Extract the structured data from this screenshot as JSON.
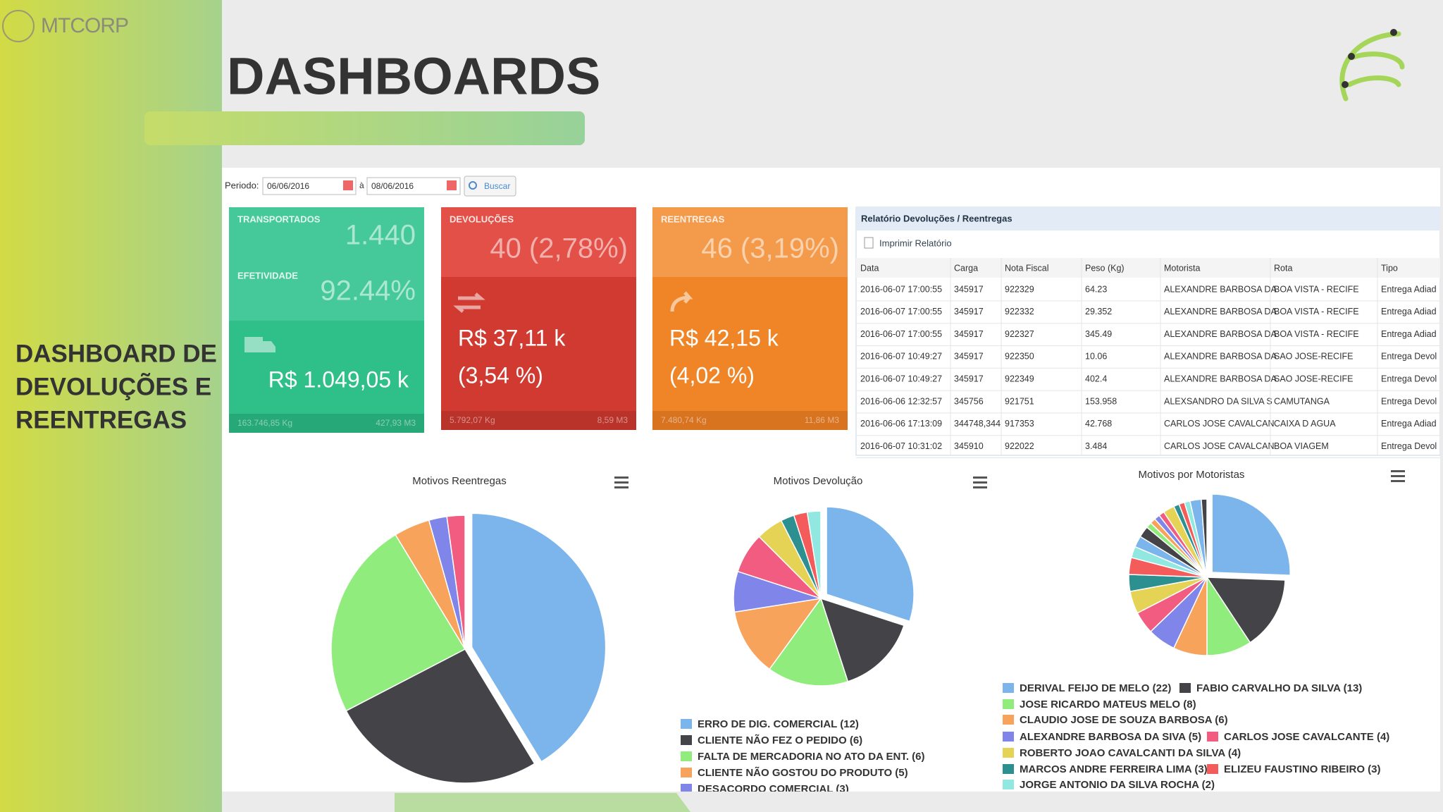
{
  "logo": "MTCORP",
  "title": "DASHBOARDS",
  "sidebar_text": [
    "DASHBOARD DE",
    "DEVOLUÇÕES E",
    "REENTREGAS"
  ],
  "filter": {
    "label": "Periodo:",
    "from": "06/06/2016",
    "separator": "à",
    "to": "08/06/2016",
    "button": "Buscar"
  },
  "cards": [
    {
      "label": "TRANSPORTADOS",
      "value": "1.440",
      "label2": "EFETIVIDADE",
      "value2": "92.44%",
      "amount": "R$ 1.049,05 k",
      "weight": "163.746,85 Kg",
      "volume": "427,93 M3"
    },
    {
      "label": "DEVOLUÇÕES",
      "value": "40 (2,78%)",
      "amount": "R$ 37,11 k",
      "percent": "(3,54 %)",
      "weight": "5.792,07 Kg",
      "volume": "8,59 M3"
    },
    {
      "label": "REENTREGAS",
      "value": "46 (3,19%)",
      "amount": "R$ 42,15 k",
      "percent": "(4,02 %)",
      "weight": "7.480,74 Kg",
      "volume": "11,86 M3"
    }
  ],
  "report": {
    "title": "Relatório Devoluções / Reentregas",
    "print": "Imprimir Relatório",
    "columns": [
      "Data",
      "Carga",
      "Nota Fiscal",
      "Peso (Kg)",
      "Motorista",
      "Rota",
      "Tipo"
    ],
    "rows": [
      [
        "2016-06-07 17:00:55",
        "345917",
        "922329",
        "64.23",
        "ALEXANDRE BARBOSA DA",
        "BOA VISTA - RECIFE",
        "Entrega Adiad"
      ],
      [
        "2016-06-07 17:00:55",
        "345917",
        "922332",
        "29.352",
        "ALEXANDRE BARBOSA DA",
        "BOA VISTA - RECIFE",
        "Entrega Adiad"
      ],
      [
        "2016-06-07 17:00:55",
        "345917",
        "922327",
        "345.49",
        "ALEXANDRE BARBOSA DA",
        "BOA VISTA - RECIFE",
        "Entrega Adiad"
      ],
      [
        "2016-06-07 10:49:27",
        "345917",
        "922350",
        "10.06",
        "ALEXANDRE BARBOSA DA",
        "SAO JOSE-RECIFE",
        "Entrega Devol"
      ],
      [
        "2016-06-07 10:49:27",
        "345917",
        "922349",
        "402.4",
        "ALEXANDRE BARBOSA DA",
        "SAO JOSE-RECIFE",
        "Entrega Devol"
      ],
      [
        "2016-06-06 12:32:57",
        "345756",
        "921751",
        "153.958",
        "ALEXSANDRO DA SILVA S",
        "CAMUTANGA",
        "Entrega Devol"
      ],
      [
        "2016-06-06 17:13:09",
        "344748,344",
        "917353",
        "42.768",
        "CARLOS JOSE CAVALCAN",
        "CAIXA D AGUA",
        "Entrega Adiad"
      ],
      [
        "2016-06-07 10:31:02",
        "345910",
        "922022",
        "3.484",
        "CARLOS JOSE CAVALCAN",
        "BOA VIAGEM",
        "Entrega Devol"
      ]
    ]
  },
  "charts": [
    {
      "type": "pie",
      "title": "Motivos Reentregas",
      "slices": [
        {
          "value": 19,
          "color": "#7cb5ec"
        },
        {
          "value": 12,
          "color": "#434348"
        },
        {
          "value": 11,
          "color": "#90ed7d"
        },
        {
          "value": 2,
          "color": "#f7a35c"
        },
        {
          "value": 1,
          "color": "#8085e9"
        },
        {
          "value": 1,
          "color": "#f15c80"
        }
      ]
    },
    {
      "type": "pie",
      "title": "Motivos Devolução",
      "slices": [
        {
          "name": "ERRO DE DIG. COMERCIAL (12)",
          "value": 12,
          "color": "#7cb5ec"
        },
        {
          "name": "CLIENTE NÃO FEZ O PEDIDO (6)",
          "value": 6,
          "color": "#434348"
        },
        {
          "name": "FALTA DE MERCADORIA NO ATO DA ENT. (6)",
          "value": 6,
          "color": "#90ed7d"
        },
        {
          "name": "CLIENTE NÃO GOSTOU DO PRODUTO (5)",
          "value": 5,
          "color": "#f7a35c"
        },
        {
          "name": "DESACORDO COMERCIAL (3)",
          "value": 3,
          "color": "#8085e9"
        },
        {
          "value": 3,
          "color": "#f15c80"
        },
        {
          "value": 2,
          "color": "#e4d354"
        },
        {
          "value": 1,
          "color": "#2b908f"
        },
        {
          "value": 1,
          "color": "#f45b5b"
        },
        {
          "value": 1,
          "color": "#91e8e1"
        }
      ]
    },
    {
      "type": "pie",
      "title": "Motivos por Motoristas",
      "slices": [
        {
          "name": "DERIVAL FEIJO DE MELO (22)",
          "value": 22,
          "color": "#7cb5ec"
        },
        {
          "name": "FABIO CARVALHO DA SILVA (13)",
          "value": 13,
          "color": "#434348"
        },
        {
          "name": "JOSE RICARDO MATEUS MELO (8)",
          "value": 8,
          "color": "#90ed7d"
        },
        {
          "name": "CLAUDIO JOSE DE SOUZA BARBOSA (6)",
          "value": 6,
          "color": "#f7a35c"
        },
        {
          "name": "ALEXANDRE BARBOSA DA SIVA (5)",
          "value": 5,
          "color": "#8085e9"
        },
        {
          "name": "CARLOS JOSE CAVALCANTE (4)",
          "value": 4,
          "color": "#f15c80"
        },
        {
          "name": "ROBERTO JOAO CAVALCANTI DA SILVA (4)",
          "value": 4,
          "color": "#e4d354"
        },
        {
          "name": "MARCOS ANDRE FERREIRA LIMA (3)",
          "value": 3,
          "color": "#2b908f"
        },
        {
          "name": "ELIZEU FAUSTINO RIBEIRO (3)",
          "value": 3,
          "color": "#f45b5b"
        },
        {
          "name": "JORGE ANTONIO DA SILVA ROCHA (2)",
          "value": 2,
          "color": "#91e8e1"
        },
        {
          "value": 2,
          "color": "#7cb5ec"
        },
        {
          "value": 2,
          "color": "#434348"
        },
        {
          "value": 1,
          "color": "#90ed7d"
        },
        {
          "value": 1,
          "color": "#f7a35c"
        },
        {
          "value": 1,
          "color": "#8085e9"
        },
        {
          "value": 1,
          "color": "#f15c80"
        },
        {
          "value": 2,
          "color": "#e4d354"
        },
        {
          "value": 1,
          "color": "#2b908f"
        },
        {
          "value": 1,
          "color": "#f45b5b"
        },
        {
          "value": 1,
          "color": "#91e8e1"
        },
        {
          "value": 2,
          "color": "#7cb5ec"
        },
        {
          "value": 1,
          "color": "#434348"
        }
      ]
    }
  ]
}
